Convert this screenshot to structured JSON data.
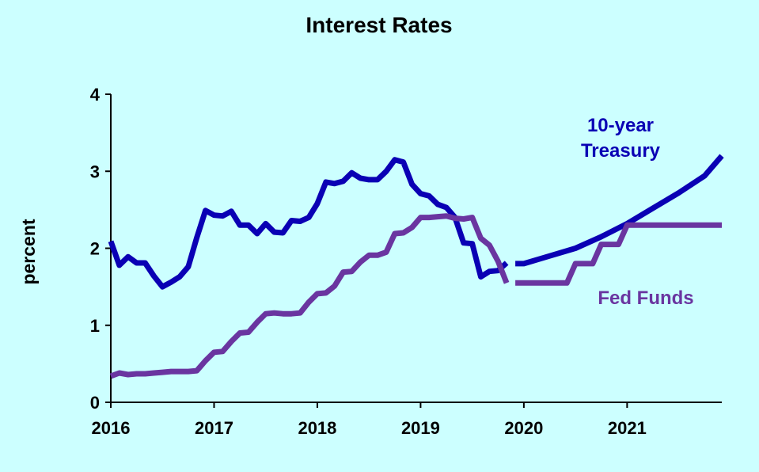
{
  "chart_data": {
    "type": "line",
    "title": "Interest Rates",
    "ylabel": "percent",
    "xlabel": "",
    "ylim": [
      0,
      4
    ],
    "yticks": [
      0,
      1,
      2,
      3,
      4
    ],
    "xlim": [
      2016,
      2021.917
    ],
    "xticks": [
      "2016",
      "2017",
      "2018",
      "2019",
      "2020",
      "2021"
    ],
    "grid": false,
    "colors": {
      "ten": "#0a00b4",
      "fed": "#6a35a0"
    },
    "series": [
      {
        "name": "10-year Treasury",
        "color": "#0a00b4",
        "segments": [
          [
            [
              2016.0,
              2.09
            ],
            [
              2016.083,
              1.78
            ],
            [
              2016.167,
              1.89
            ],
            [
              2016.25,
              1.81
            ],
            [
              2016.333,
              1.81
            ],
            [
              2016.417,
              1.64
            ],
            [
              2016.5,
              1.5
            ],
            [
              2016.583,
              1.56
            ],
            [
              2016.667,
              1.63
            ],
            [
              2016.75,
              1.76
            ],
            [
              2016.833,
              2.14
            ],
            [
              2016.917,
              2.49
            ],
            [
              2017.0,
              2.43
            ],
            [
              2017.083,
              2.42
            ],
            [
              2017.167,
              2.48
            ],
            [
              2017.25,
              2.3
            ],
            [
              2017.333,
              2.3
            ],
            [
              2017.417,
              2.19
            ],
            [
              2017.5,
              2.32
            ],
            [
              2017.583,
              2.21
            ],
            [
              2017.667,
              2.2
            ],
            [
              2017.75,
              2.36
            ],
            [
              2017.833,
              2.35
            ],
            [
              2017.917,
              2.4
            ],
            [
              2018.0,
              2.58
            ],
            [
              2018.083,
              2.86
            ],
            [
              2018.167,
              2.84
            ],
            [
              2018.25,
              2.87
            ],
            [
              2018.333,
              2.98
            ],
            [
              2018.417,
              2.91
            ],
            [
              2018.5,
              2.89
            ],
            [
              2018.583,
              2.89
            ],
            [
              2018.667,
              3.0
            ],
            [
              2018.75,
              3.15
            ],
            [
              2018.833,
              3.12
            ],
            [
              2018.917,
              2.83
            ],
            [
              2019.0,
              2.71
            ],
            [
              2019.083,
              2.68
            ],
            [
              2019.167,
              2.57
            ],
            [
              2019.25,
              2.53
            ],
            [
              2019.333,
              2.4
            ],
            [
              2019.417,
              2.07
            ],
            [
              2019.5,
              2.06
            ],
            [
              2019.583,
              1.63
            ],
            [
              2019.667,
              1.7
            ],
            [
              2019.75,
              1.71
            ],
            [
              2019.833,
              1.81
            ]
          ],
          [
            [
              2019.917,
              1.8
            ],
            [
              2020.0,
              1.8
            ],
            [
              2020.25,
              1.9
            ],
            [
              2020.5,
              2.0
            ],
            [
              2020.75,
              2.15
            ],
            [
              2021.0,
              2.32
            ],
            [
              2021.25,
              2.52
            ],
            [
              2021.5,
              2.72
            ],
            [
              2021.75,
              2.94
            ],
            [
              2021.917,
              3.2
            ]
          ]
        ]
      },
      {
        "name": "Fed Funds",
        "color": "#6a35a0",
        "segments": [
          [
            [
              2016.0,
              0.34
            ],
            [
              2016.083,
              0.38
            ],
            [
              2016.167,
              0.36
            ],
            [
              2016.25,
              0.37
            ],
            [
              2016.333,
              0.37
            ],
            [
              2016.417,
              0.38
            ],
            [
              2016.5,
              0.39
            ],
            [
              2016.583,
              0.4
            ],
            [
              2016.667,
              0.4
            ],
            [
              2016.75,
              0.4
            ],
            [
              2016.833,
              0.41
            ],
            [
              2016.917,
              0.54
            ],
            [
              2017.0,
              0.65
            ],
            [
              2017.083,
              0.66
            ],
            [
              2017.167,
              0.79
            ],
            [
              2017.25,
              0.9
            ],
            [
              2017.333,
              0.91
            ],
            [
              2017.417,
              1.04
            ],
            [
              2017.5,
              1.15
            ],
            [
              2017.583,
              1.16
            ],
            [
              2017.667,
              1.15
            ],
            [
              2017.75,
              1.15
            ],
            [
              2017.833,
              1.16
            ],
            [
              2017.917,
              1.3
            ],
            [
              2018.0,
              1.41
            ],
            [
              2018.083,
              1.42
            ],
            [
              2018.167,
              1.51
            ],
            [
              2018.25,
              1.69
            ],
            [
              2018.333,
              1.7
            ],
            [
              2018.417,
              1.82
            ],
            [
              2018.5,
              1.91
            ],
            [
              2018.583,
              1.91
            ],
            [
              2018.667,
              1.95
            ],
            [
              2018.75,
              2.19
            ],
            [
              2018.833,
              2.2
            ],
            [
              2018.917,
              2.27
            ],
            [
              2019.0,
              2.4
            ],
            [
              2019.083,
              2.4
            ],
            [
              2019.167,
              2.41
            ],
            [
              2019.25,
              2.42
            ],
            [
              2019.333,
              2.39
            ],
            [
              2019.417,
              2.38
            ],
            [
              2019.5,
              2.4
            ],
            [
              2019.583,
              2.13
            ],
            [
              2019.667,
              2.04
            ],
            [
              2019.75,
              1.83
            ],
            [
              2019.833,
              1.55
            ]
          ],
          [
            [
              2019.917,
              1.55
            ],
            [
              2020.0,
              1.55
            ],
            [
              2020.417,
              1.55
            ],
            [
              2020.5,
              1.8
            ],
            [
              2020.667,
              1.8
            ],
            [
              2020.75,
              2.05
            ],
            [
              2020.917,
              2.05
            ],
            [
              2021.0,
              2.3
            ],
            [
              2021.917,
              2.3
            ]
          ]
        ]
      }
    ],
    "annotations": {
      "ten_line1": "10-year",
      "ten_line2": "Treasury",
      "fed": "Fed Funds"
    }
  }
}
